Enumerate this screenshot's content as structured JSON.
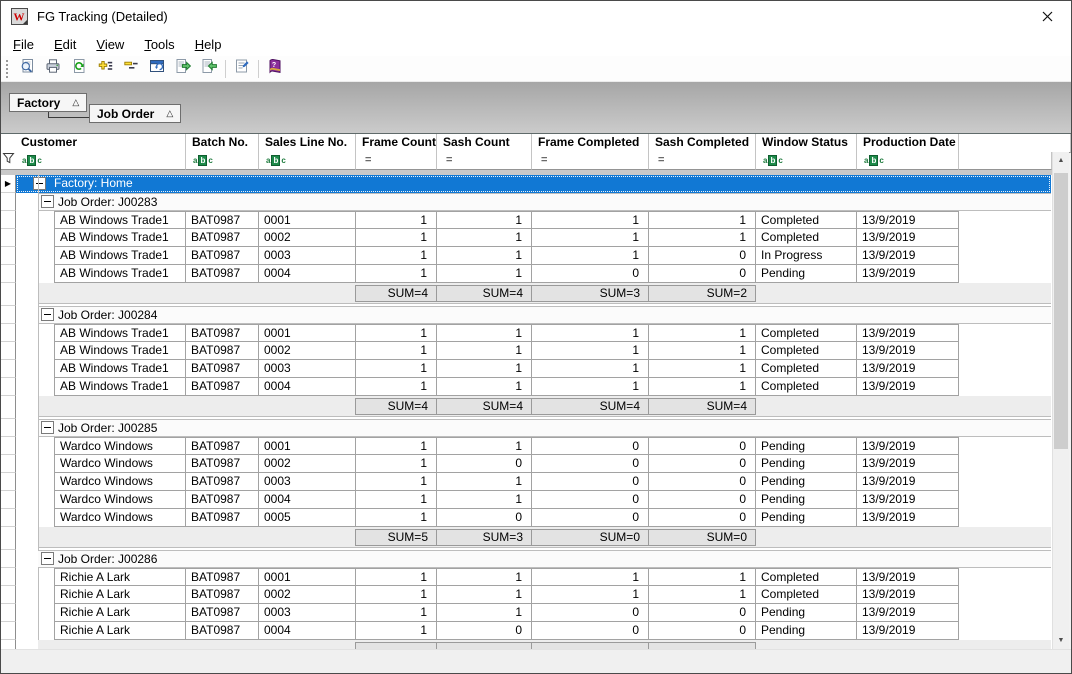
{
  "window": {
    "title": "FG Tracking (Detailed)"
  },
  "menu": {
    "items": [
      "File",
      "Edit",
      "View",
      "Tools",
      "Help"
    ]
  },
  "toolbar": {
    "buttons": [
      "print-preview-icon",
      "print-icon",
      "refresh-icon",
      "expand-groups-icon",
      "collapse-groups-icon",
      "group-panel-icon",
      "export-data-icon",
      "import-data-icon",
      "properties-icon",
      "help-icon"
    ]
  },
  "group_panel": {
    "level1": "Factory",
    "level2": "Job Order",
    "sort_glyph": "△"
  },
  "grid": {
    "indicator_glyph": "▶",
    "columns": [
      {
        "label": "Customer",
        "filter": "abc"
      },
      {
        "label": "Batch No.",
        "filter": "abc"
      },
      {
        "label": "Sales Line No.",
        "filter": "abc"
      },
      {
        "label": "Frame Count",
        "filter": "eq"
      },
      {
        "label": "Sash Count",
        "filter": "eq"
      },
      {
        "label": "Frame Completed",
        "filter": "eq"
      },
      {
        "label": "Sash Completed",
        "filter": "eq"
      },
      {
        "label": "Window Status",
        "filter": "abc"
      },
      {
        "label": "Production Date",
        "filter": "abc"
      }
    ],
    "root_group": {
      "label": "Factory: Home"
    },
    "groups": [
      {
        "label": "Job Order: J00283",
        "rows": [
          [
            "AB Windows Trade1",
            "BAT0987",
            "0001",
            "1",
            "1",
            "1",
            "1",
            "Completed",
            "13/9/2019"
          ],
          [
            "AB Windows Trade1",
            "BAT0987",
            "0002",
            "1",
            "1",
            "1",
            "1",
            "Completed",
            "13/9/2019"
          ],
          [
            "AB Windows Trade1",
            "BAT0987",
            "0003",
            "1",
            "1",
            "1",
            "0",
            "In Progress",
            "13/9/2019"
          ],
          [
            "AB Windows Trade1",
            "BAT0987",
            "0004",
            "1",
            "1",
            "0",
            "0",
            "Pending",
            "13/9/2019"
          ]
        ],
        "sums": [
          "SUM=4",
          "SUM=4",
          "SUM=3",
          "SUM=2"
        ]
      },
      {
        "label": "Job Order: J00284",
        "rows": [
          [
            "AB Windows Trade1",
            "BAT0987",
            "0001",
            "1",
            "1",
            "1",
            "1",
            "Completed",
            "13/9/2019"
          ],
          [
            "AB Windows Trade1",
            "BAT0987",
            "0002",
            "1",
            "1",
            "1",
            "1",
            "Completed",
            "13/9/2019"
          ],
          [
            "AB Windows Trade1",
            "BAT0987",
            "0003",
            "1",
            "1",
            "1",
            "1",
            "Completed",
            "13/9/2019"
          ],
          [
            "AB Windows Trade1",
            "BAT0987",
            "0004",
            "1",
            "1",
            "1",
            "1",
            "Completed",
            "13/9/2019"
          ]
        ],
        "sums": [
          "SUM=4",
          "SUM=4",
          "SUM=4",
          "SUM=4"
        ]
      },
      {
        "label": "Job Order: J00285",
        "rows": [
          [
            "Wardco Windows",
            "BAT0987",
            "0001",
            "1",
            "1",
            "0",
            "0",
            "Pending",
            "13/9/2019"
          ],
          [
            "Wardco Windows",
            "BAT0987",
            "0002",
            "1",
            "0",
            "0",
            "0",
            "Pending",
            "13/9/2019"
          ],
          [
            "Wardco Windows",
            "BAT0987",
            "0003",
            "1",
            "1",
            "0",
            "0",
            "Pending",
            "13/9/2019"
          ],
          [
            "Wardco Windows",
            "BAT0987",
            "0004",
            "1",
            "1",
            "0",
            "0",
            "Pending",
            "13/9/2019"
          ],
          [
            "Wardco Windows",
            "BAT0987",
            "0005",
            "1",
            "0",
            "0",
            "0",
            "Pending",
            "13/9/2019"
          ]
        ],
        "sums": [
          "SUM=5",
          "SUM=3",
          "SUM=0",
          "SUM=0"
        ]
      },
      {
        "label": "Job Order: J00286",
        "rows": [
          [
            "Richie A Lark",
            "BAT0987",
            "0001",
            "1",
            "1",
            "1",
            "1",
            "Completed",
            "13/9/2019"
          ],
          [
            "Richie A Lark",
            "BAT0987",
            "0002",
            "1",
            "1",
            "1",
            "1",
            "Completed",
            "13/9/2019"
          ],
          [
            "Richie A Lark",
            "BAT0987",
            "0003",
            "1",
            "1",
            "0",
            "0",
            "Pending",
            "13/9/2019"
          ],
          [
            "Richie A Lark",
            "BAT0987",
            "0004",
            "1",
            "0",
            "0",
            "0",
            "Pending",
            "13/9/2019"
          ]
        ],
        "sums": [
          "",
          "",
          "",
          ""
        ]
      }
    ]
  },
  "scrollbar": {
    "up_glyph": "▲",
    "down_glyph": "▼"
  }
}
